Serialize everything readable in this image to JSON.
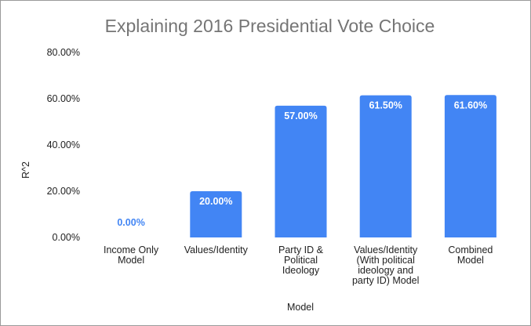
{
  "chart_data": {
    "type": "bar",
    "title": "Explaining 2016 Presidential Vote Choice",
    "xlabel": "Model",
    "ylabel": "R^2",
    "ylim": [
      0,
      80
    ],
    "yticks": [
      "0.00%",
      "20.00%",
      "40.00%",
      "60.00%",
      "80.00%"
    ],
    "grid": false,
    "legend": "none",
    "bar_color": "#4285f4",
    "label_inside_color": "#ffffff",
    "label_outside_color": "#4285f4",
    "categories": [
      [
        "Income Only",
        "Model"
      ],
      [
        "Values/Identity"
      ],
      [
        "Party ID &",
        "Political",
        "Ideology"
      ],
      [
        "Values/Identity",
        "(With political",
        "ideology and",
        "party ID) Model"
      ],
      [
        "Combined",
        "Model"
      ]
    ],
    "values": [
      0.0,
      20.0,
      57.0,
      61.5,
      61.6
    ],
    "data_labels": [
      "0.00%",
      "20.00%",
      "57.00%",
      "61.50%",
      "61.60%"
    ]
  }
}
